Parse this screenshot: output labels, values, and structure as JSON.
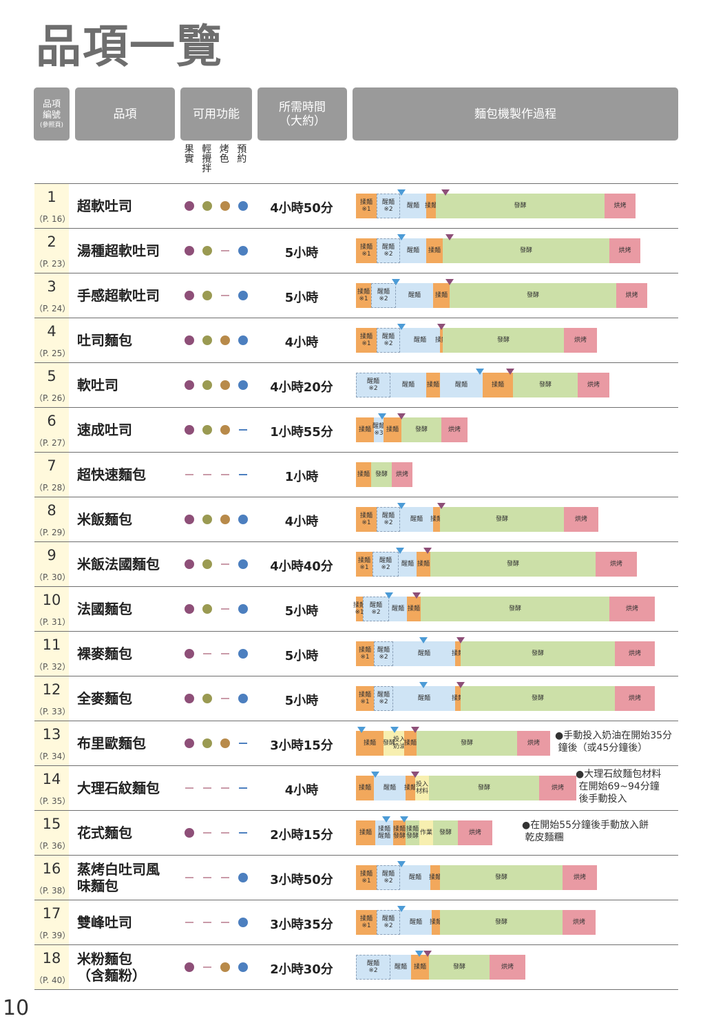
{
  "title": "品項一覽",
  "page_number": "10",
  "header": {
    "no_line1": "品項",
    "no_line2": "編號",
    "no_sub": "(參照頁)",
    "item": "品項",
    "functions": "可用功能",
    "time_line1": "所需時間",
    "time_line2": "（大約）",
    "process": "麵包機製作過程"
  },
  "function_labels": [
    "果實",
    "輕攪拌",
    "烤色",
    "預約"
  ],
  "colors": {
    "dot_fruit": "#8e4f78",
    "dot_stir": "#9a9a52",
    "dot_crust": "#b88a4a",
    "dot_timer": "#4c7fbf",
    "knead": "#f2a85c",
    "rest": "#cfe4f5",
    "rise": "#cce0a8",
    "bake": "#e99aa3",
    "add": "#f7efb0",
    "marker_blue": "#4c9bd6",
    "marker_purple": "#8e4f78"
  },
  "rows": [
    {
      "no": "1",
      "page": "（P. 16）",
      "name": "超軟吐司",
      "time": "4小時50分",
      "f": [
        1,
        1,
        1,
        1
      ],
      "segs": [
        [
          "knead",
          "揉麵\n※1",
          30
        ],
        [
          "rest",
          "醒麵\n※2",
          34,
          1
        ],
        [
          "rest",
          "醒麵",
          38
        ],
        [
          "knead",
          "揉麵",
          14
        ],
        [
          "rise",
          "發酵",
          245
        ],
        [
          "bake",
          "烘烤",
          45
        ]
      ],
      "markers": [
        [
          "b",
          66
        ],
        [
          "p",
          130
        ]
      ]
    },
    {
      "no": "2",
      "page": "（P. 23）",
      "name": "湯種超軟吐司",
      "time": "5小時",
      "f": [
        1,
        1,
        0,
        1
      ],
      "segs": [
        [
          "knead",
          "揉麵\n※1",
          30
        ],
        [
          "rest",
          "醒麵\n※2",
          34,
          1
        ],
        [
          "rest",
          "醒麵",
          38
        ],
        [
          "knead",
          "揉麵",
          24
        ],
        [
          "rise",
          "發酵",
          242
        ],
        [
          "bake",
          "烘烤",
          45
        ]
      ],
      "markers": [
        [
          "b",
          66
        ],
        [
          "p",
          136
        ]
      ]
    },
    {
      "no": "3",
      "page": "（P. 24）",
      "name": "手感超軟吐司",
      "time": "5小時",
      "f": [
        1,
        1,
        0,
        1
      ],
      "segs": [
        [
          "knead",
          "揉麵\n※1",
          22
        ],
        [
          "rest",
          "醒麵\n※2",
          36,
          1
        ],
        [
          "rest",
          "醒麵",
          54
        ],
        [
          "knead",
          "揉麵",
          24
        ],
        [
          "rise",
          "發酵",
          242
        ],
        [
          "bake",
          "烘烤",
          45
        ]
      ],
      "markers": [
        [
          "b",
          58
        ],
        [
          "p",
          136
        ]
      ]
    },
    {
      "no": "4",
      "page": "（P. 25）",
      "name": "吐司麵包",
      "time": "4小時",
      "f": [
        1,
        1,
        1,
        1
      ],
      "segs": [
        [
          "knead",
          "揉麵\n※1",
          30
        ],
        [
          "rest",
          "醒麵\n※2",
          34,
          1
        ],
        [
          "rest",
          "醒麵",
          58
        ],
        [
          "knead",
          "揉麵",
          4
        ],
        [
          "rise",
          "發酵",
          176
        ],
        [
          "bake",
          "烘烤",
          48
        ]
      ],
      "markers": [
        [
          "b",
          66
        ],
        [
          "p",
          124
        ]
      ]
    },
    {
      "no": "5",
      "page": "（P. 26）",
      "name": "軟吐司",
      "time": "4小時20分",
      "f": [
        1,
        1,
        1,
        1
      ],
      "segs": [
        [
          "rest",
          "醒麵\n※2",
          50,
          1
        ],
        [
          "rest",
          "醒麵",
          52
        ],
        [
          "knead",
          "揉麵",
          20
        ],
        [
          "rest",
          "醒麵",
          62
        ],
        [
          "knead",
          "揉麵",
          44
        ],
        [
          "rise",
          "發酵",
          94
        ],
        [
          "bake",
          "烘烤",
          46
        ]
      ],
      "markers": [
        [
          "b",
          180
        ],
        [
          "p",
          224
        ]
      ]
    },
    {
      "no": "6",
      "page": "（P. 27）",
      "name": "速成吐司",
      "time": "1小時55分",
      "f": [
        1,
        1,
        1,
        0
      ],
      "segs": [
        [
          "knead",
          "揉麵",
          26
        ],
        [
          "rest",
          "醒麵\n※3",
          14
        ],
        [
          "knead",
          "揉麵",
          26
        ],
        [
          "rise",
          "發酵",
          58
        ],
        [
          "bake",
          "烘烤",
          38
        ]
      ],
      "markers": [
        [
          "b",
          38
        ],
        [
          "p",
          66
        ]
      ]
    },
    {
      "no": "7",
      "page": "（P. 28）",
      "name": "超快速麵包",
      "time": "1小時",
      "f": [
        0,
        0,
        0,
        0
      ],
      "segs": [
        [
          "knead",
          "揉麵",
          22
        ],
        [
          "rise",
          "發酵",
          30
        ],
        [
          "bake",
          "烘烤",
          30
        ]
      ],
      "markers": []
    },
    {
      "no": "8",
      "page": "（P. 29）",
      "name": "米飯麵包",
      "time": "4小時",
      "f": [
        1,
        1,
        1,
        1
      ],
      "segs": [
        [
          "knead",
          "揉麵\n※1",
          30
        ],
        [
          "rest",
          "醒麵\n※2",
          34,
          1
        ],
        [
          "rest",
          "醒麵",
          48
        ],
        [
          "knead",
          "揉麵",
          10
        ],
        [
          "rise",
          "發酵",
          180
        ],
        [
          "bake",
          "烘烤",
          50
        ]
      ],
      "markers": [
        [
          "b",
          66
        ],
        [
          "p",
          124
        ]
      ]
    },
    {
      "no": "9",
      "page": "（P. 30）",
      "name": "米飯法國麵包",
      "time": "4小時40分",
      "f": [
        1,
        1,
        0,
        1
      ],
      "segs": [
        [
          "knead",
          "揉麵\n※1",
          24
        ],
        [
          "rest",
          "醒麵\n※2",
          38,
          1
        ],
        [
          "rest",
          "醒麵",
          26
        ],
        [
          "knead",
          "揉麵",
          20
        ],
        [
          "rise",
          "發酵",
          240
        ],
        [
          "bake",
          "烘烤",
          60
        ]
      ],
      "markers": [
        [
          "b",
          64
        ],
        [
          "p",
          104
        ]
      ]
    },
    {
      "no": "10",
      "page": "（P. 31）",
      "name": "法國麵包",
      "time": "5小時",
      "f": [
        1,
        1,
        0,
        1
      ],
      "segs": [
        [
          "knead",
          "揉麵\n※1",
          10
        ],
        [
          "rest",
          "醒麵\n※2",
          38,
          1
        ],
        [
          "rest",
          "醒麵",
          26
        ],
        [
          "knead",
          "揉麵",
          20
        ],
        [
          "rise",
          "發酵",
          274
        ],
        [
          "bake",
          "烘烤",
          66
        ]
      ],
      "markers": [
        [
          "b",
          48
        ],
        [
          "p",
          88
        ]
      ]
    },
    {
      "no": "11",
      "page": "（P. 32）",
      "name": "裸麥麵包",
      "time": "5小時",
      "f": [
        1,
        0,
        0,
        1
      ],
      "segs": [
        [
          "knead",
          "揉麵\n※1",
          26
        ],
        [
          "rest",
          "醒麵\n※2",
          28,
          1
        ],
        [
          "rest",
          "醒麵",
          90
        ],
        [
          "knead",
          "揉麵",
          8
        ],
        [
          "rise",
          "發酵",
          224
        ],
        [
          "bake",
          "烘烤",
          58
        ]
      ],
      "markers": [
        [
          "b",
          98
        ],
        [
          "p",
          152
        ]
      ]
    },
    {
      "no": "12",
      "page": "（P. 33）",
      "name": "全麥麵包",
      "time": "5小時",
      "f": [
        1,
        1,
        0,
        1
      ],
      "segs": [
        [
          "knead",
          "揉麵\n※1",
          26
        ],
        [
          "rest",
          "醒麵\n※2",
          28,
          1
        ],
        [
          "rest",
          "醒麵",
          90
        ],
        [
          "knead",
          "揉麵",
          8
        ],
        [
          "rise",
          "發酵",
          224
        ],
        [
          "bake",
          "烘烤",
          58
        ]
      ],
      "markers": [
        [
          "b",
          98
        ],
        [
          "p",
          152
        ]
      ]
    },
    {
      "no": "13",
      "page": "（P. 34）",
      "name": "布里歐麵包",
      "time": "3小時15分",
      "f": [
        1,
        1,
        1,
        0
      ],
      "segs": [
        [
          "knead",
          "揉麵",
          40
        ],
        [
          "add",
          "發酵",
          16
        ],
        [
          "add",
          "投入\n奶油",
          14
        ],
        [
          "knead",
          "揉麵",
          18
        ],
        [
          "rise",
          "發酵",
          146
        ],
        [
          "bake",
          "烘烤",
          48
        ]
      ],
      "markers": [
        [
          "b",
          8
        ],
        [
          "b",
          56
        ],
        [
          "p",
          86
        ]
      ],
      "note": "●手動投入奶油在開始35分\n 鐘後（或45分鐘後）",
      "note_x": 806,
      "note_w": 190
    },
    {
      "no": "14",
      "page": "（P. 35）",
      "name": "大理石紋麵包",
      "time": "4小時",
      "f": [
        0,
        0,
        0,
        0
      ],
      "segs": [
        [
          "knead",
          "揉麵",
          26
        ],
        [
          "rest",
          "醒麵",
          46
        ],
        [
          "knead",
          "揉麵",
          14
        ],
        [
          "add",
          "投入\n材料",
          20
        ],
        [
          "rise",
          "發酵",
          160
        ],
        [
          "bake",
          "烘烤",
          54
        ]
      ],
      "markers": [
        [
          "b",
          28
        ],
        [
          "b",
          86
        ],
        [
          "p",
          86
        ]
      ],
      "note": "●大理石紋麵包材料\n 在開始69~94分鐘\n 後手動投入",
      "note_x": 836,
      "note_w": 160
    },
    {
      "no": "15",
      "page": "（P. 36）",
      "name": "花式麵包",
      "time": "2小時15分",
      "f": [
        1,
        0,
        0,
        0
      ],
      "segs": [
        [
          "knead",
          "揉麵",
          28
        ],
        [
          "rest",
          "揉麵\n醒麵",
          26
        ],
        [
          "knead",
          "揉麵\n發酵",
          18
        ],
        [
          "rise",
          "揉麵\n發酵",
          20
        ],
        [
          "add",
          "作業",
          20
        ],
        [
          "rise",
          "發酵",
          36
        ],
        [
          "bake",
          "烘烤",
          50
        ]
      ],
      "markers": [
        [
          "b",
          44
        ],
        [
          "b",
          70
        ]
      ],
      "note": "●在開始55分鐘後手動放入餅\n 乾皮麵糰",
      "note_x": 758,
      "note_w": 230
    },
    {
      "no": "16",
      "page": "（P. 38）",
      "name": "蒸烤白吐司風\n味麵包",
      "time": "3小時50分",
      "f": [
        0,
        0,
        0,
        1
      ],
      "segs": [
        [
          "knead",
          "揉麵\n※1",
          30
        ],
        [
          "rest",
          "醒麵\n※2",
          34,
          1
        ],
        [
          "rest",
          "醒麵",
          44
        ],
        [
          "knead",
          "揉麵",
          14
        ],
        [
          "rise",
          "發酵",
          178
        ],
        [
          "bake",
          "烘烤",
          50
        ]
      ],
      "markers": [
        [
          "b",
          66
        ]
      ]
    },
    {
      "no": "17",
      "page": "（P. 39）",
      "name": "雙峰吐司",
      "time": "3小時35分",
      "f": [
        0,
        0,
        0,
        1
      ],
      "segs": [
        [
          "knead",
          "揉麵\n※1",
          30
        ],
        [
          "rest",
          "醒麵\n※2",
          34,
          1
        ],
        [
          "rest",
          "醒麵",
          46
        ],
        [
          "knead",
          "揉麵",
          12
        ],
        [
          "rise",
          "發酵",
          178
        ],
        [
          "bake",
          "烘烤",
          48
        ]
      ],
      "markers": [
        [
          "b",
          66
        ]
      ]
    },
    {
      "no": "18",
      "page": "（P. 40）",
      "name": "米粉麵包\n（含麵粉）",
      "time": "2小時30分",
      "f": [
        1,
        0,
        1,
        1
      ],
      "segs": [
        [
          "rest",
          "醒麵\n※2",
          50,
          1
        ],
        [
          "rest",
          "醒麵",
          30
        ],
        [
          "knead",
          "揉麵",
          26
        ],
        [
          "rise",
          "發酵",
          88
        ],
        [
          "bake",
          "烘烤",
          52
        ]
      ],
      "markers": [
        [
          "b",
          92
        ],
        [
          "p",
          104
        ]
      ]
    }
  ]
}
